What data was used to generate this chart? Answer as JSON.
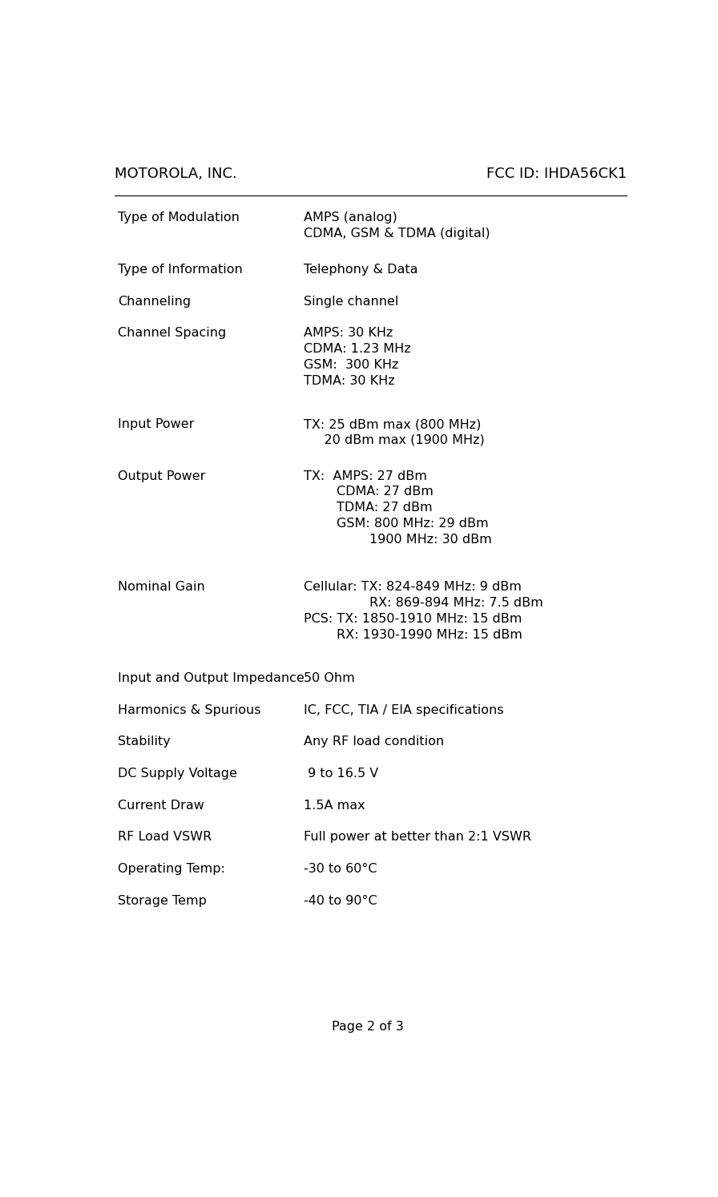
{
  "header_left": "MOTOROLA, INC.",
  "header_right": "FCC ID: IHDA56CK1",
  "footer": "Page 2 of 3",
  "bg_color": "#ffffff",
  "text_color": "#000000",
  "header_font_size": 13,
  "body_font_size": 11.5,
  "rows": [
    {
      "label": "Type of Modulation",
      "value": "AMPS (analog)\nCDMA, GSM & TDMA (digital)"
    },
    {
      "label": "Type of Information",
      "value": "Telephony & Data"
    },
    {
      "label": "Channeling",
      "value": "Single channel"
    },
    {
      "label": "Channel Spacing",
      "value": "AMPS: 30 KHz\nCDMA: 1.23 MHz\nGSM:  300 KHz\nTDMA: 30 KHz"
    },
    {
      "label": "Input Power",
      "value": "TX: 25 dBm max (800 MHz)\n     20 dBm max (1900 MHz)"
    },
    {
      "label": "Output Power",
      "value": "TX:  AMPS: 27 dBm\n        CDMA: 27 dBm\n        TDMA: 27 dBm\n        GSM: 800 MHz: 29 dBm\n                1900 MHz: 30 dBm"
    },
    {
      "label": "Nominal Gain",
      "value": "Cellular: TX: 824-849 MHz: 9 dBm\n                RX: 869-894 MHz: 7.5 dBm\nPCS: TX: 1850-1910 MHz: 15 dBm\n        RX: 1930-1990 MHz: 15 dBm"
    },
    {
      "label": "Input and Output Impedance",
      "value": "50 Ohm"
    },
    {
      "label": "Harmonics & Spurious",
      "value": "IC, FCC, TIA / EIA specifications"
    },
    {
      "label": "Stability",
      "value": "Any RF load condition"
    },
    {
      "label": "DC Supply Voltage",
      "value": " 9 to 16.5 V"
    },
    {
      "label": "Current Draw",
      "value": "1.5A max"
    },
    {
      "label": "RF Load VSWR",
      "value": "Full power at better than 2:1 VSWR"
    },
    {
      "label": "Operating Temp:",
      "value": "-30 to 60°C"
    },
    {
      "label": "Storage Temp",
      "value": "-40 to 90°C"
    }
  ]
}
